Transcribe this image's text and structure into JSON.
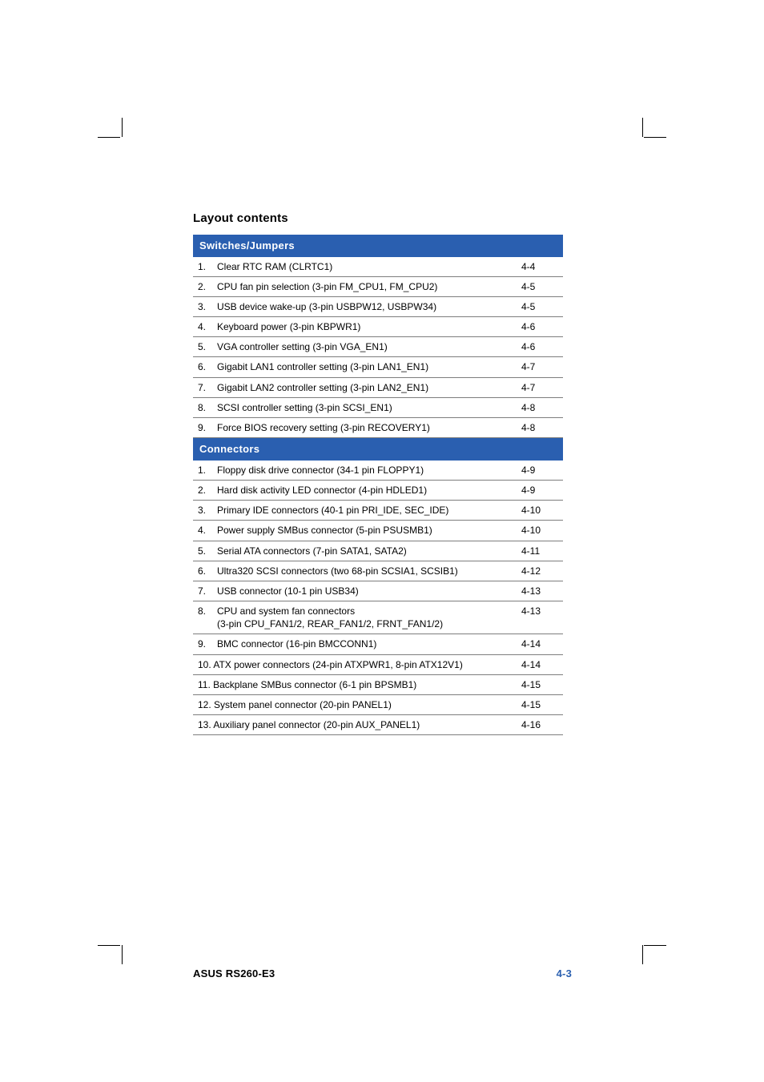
{
  "section_title": "Layout contents",
  "colors": {
    "header_bg": "#2a5fb0",
    "header_text": "#ffffff",
    "row_border": "#7d7d7d",
    "body_text": "#000000",
    "page_bg": "#ffffff",
    "footer_accent": "#2a5fb0"
  },
  "typography": {
    "section_title_size_pt": 11,
    "header_row_size_pt": 10,
    "body_row_size_pt": 9,
    "footer_size_pt": 10,
    "font_family": "Arial, Helvetica, sans-serif"
  },
  "tables": [
    {
      "header": "Switches/Jumpers",
      "rows": [
        {
          "num": "1.",
          "desc": "Clear RTC RAM (CLRTC1)",
          "page": "4-4"
        },
        {
          "num": "2.",
          "desc": "CPU fan pin selection (3-pin FM_CPU1, FM_CPU2)",
          "page": "4-5"
        },
        {
          "num": "3.",
          "desc": "USB device wake-up (3-pin USBPW12, USBPW34)",
          "page": "4-5"
        },
        {
          "num": "4.",
          "desc": "Keyboard power (3-pin KBPWR1)",
          "page": "4-6"
        },
        {
          "num": "5.",
          "desc": "VGA controller setting (3-pin VGA_EN1)",
          "page": "4-6"
        },
        {
          "num": "6.",
          "desc": "Gigabit LAN1 controller setting (3-pin LAN1_EN1)",
          "page": "4-7"
        },
        {
          "num": "7.",
          "desc": "Gigabit LAN2 controller setting (3-pin LAN2_EN1)",
          "page": "4-7"
        },
        {
          "num": "8.",
          "desc": "SCSI controller setting (3-pin SCSI_EN1)",
          "page": "4-8"
        },
        {
          "num": "9.",
          "desc": "Force BIOS recovery setting (3-pin RECOVERY1)",
          "page": "4-8"
        }
      ]
    },
    {
      "header": "Connectors",
      "rows": [
        {
          "num": "1.",
          "desc": "Floppy disk drive connector (34-1 pin FLOPPY1)",
          "page": "4-9"
        },
        {
          "num": "2.",
          "desc": "Hard disk activity LED connector (4-pin HDLED1)",
          "page": "4-9"
        },
        {
          "num": "3.",
          "desc": "Primary IDE connectors (40-1 pin PRI_IDE, SEC_IDE)",
          "page": "4-10"
        },
        {
          "num": "4.",
          "desc": "Power supply SMBus connector (5-pin PSUSMB1)",
          "page": "4-10"
        },
        {
          "num": "5.",
          "desc": "Serial ATA connectors (7-pin SATA1, SATA2)",
          "page": "4-11"
        },
        {
          "num": "6.",
          "desc": "Ultra320 SCSI connectors (two 68-pin SCSIA1, SCSIB1)",
          "page": "4-12"
        },
        {
          "num": "7.",
          "desc": "USB connector (10-1 pin USB34)",
          "page": "4-13"
        },
        {
          "num": "8.",
          "desc": "CPU and system fan connectors\n(3-pin CPU_FAN1/2, REAR_FAN1/2, FRNT_FAN1/2)",
          "page": "4-13"
        },
        {
          "num": "9.",
          "desc": "BMC connector (16-pin BMCCONN1)",
          "page": "4-14"
        },
        {
          "num": "10.",
          "desc": "ATX power connectors (24-pin ATXPWR1, 8-pin ATX12V1)",
          "page": "4-14",
          "merge_num": true
        },
        {
          "num": "11.",
          "desc": "Backplane SMBus connector (6-1 pin BPSMB1)",
          "page": "4-15",
          "merge_num": true
        },
        {
          "num": "12.",
          "desc": "System panel connector (20-pin PANEL1)",
          "page": "4-15",
          "merge_num": true
        },
        {
          "num": "13.",
          "desc": "Auxiliary panel connector (20-pin AUX_PANEL1)",
          "page": "4-16",
          "merge_num": true
        }
      ]
    }
  ],
  "footer": {
    "left": "ASUS RS260-E3",
    "right": "4-3"
  }
}
